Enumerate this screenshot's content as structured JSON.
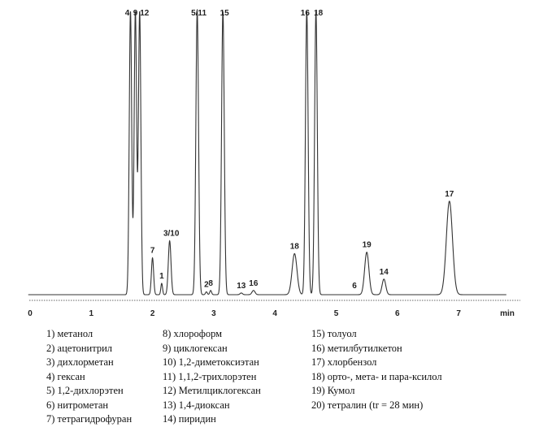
{
  "chart_data": {
    "type": "line",
    "title": "",
    "xlabel": "min",
    "ylabel": "",
    "xlim": [
      -0.05,
      7.9
    ],
    "x_ticks": [
      0,
      1,
      2,
      3,
      4,
      5,
      6,
      7
    ],
    "grid": false,
    "peaks": [
      {
        "t": 1.64,
        "h": 100,
        "w": 0.02,
        "label": "4"
      },
      {
        "t": 1.72,
        "h": 100,
        "w": 0.02,
        "label": "9"
      },
      {
        "t": 1.79,
        "h": 100,
        "w": 0.02,
        "label": "12"
      },
      {
        "t": 2.0,
        "h": 13,
        "w": 0.018,
        "label": "7"
      },
      {
        "t": 2.15,
        "h": 4,
        "w": 0.014,
        "label": "1"
      },
      {
        "t": 2.28,
        "h": 19,
        "w": 0.022,
        "label": "3/10"
      },
      {
        "t": 2.73,
        "h": 100,
        "w": 0.022,
        "label": "5/11"
      },
      {
        "t": 2.88,
        "h": 1,
        "w": 0.015,
        "label": "2"
      },
      {
        "t": 2.95,
        "h": 1.5,
        "w": 0.015,
        "label": "8"
      },
      {
        "t": 3.15,
        "h": 100,
        "w": 0.022,
        "label": "15"
      },
      {
        "t": 3.45,
        "h": 0.6,
        "w": 0.02,
        "label": "13"
      },
      {
        "t": 3.65,
        "h": 1.5,
        "w": 0.025,
        "label": "16"
      },
      {
        "t": 4.32,
        "h": 14.5,
        "w": 0.04,
        "label": "18"
      },
      {
        "t": 4.52,
        "h": 100,
        "w": 0.022,
        "label": "16"
      },
      {
        "t": 4.67,
        "h": 100,
        "w": 0.022,
        "label": "18"
      },
      {
        "t": 5.5,
        "h": 15,
        "w": 0.035,
        "label": "19"
      },
      {
        "t": 5.78,
        "h": 5.5,
        "w": 0.03,
        "label": "14"
      },
      {
        "t": 6.85,
        "h": 33,
        "w": 0.05,
        "label": "17"
      }
    ],
    "extra_labels": [
      {
        "t": 5.3,
        "label": "6"
      }
    ]
  },
  "legend": {
    "col1": [
      "1) метанол",
      "2) ацетонитрил",
      "3) дихлорметан",
      "4) гексан",
      "5) 1,2-дихлорэтен",
      "6) нитрометан",
      "7) тетрагидрофуран"
    ],
    "col2": [
      "8) хлороформ",
      "9) циклогексан",
      "10) 1,2-диметоксиэтан",
      "11) 1,1,2-трихлорэтен",
      "12) Метилциклогексан",
      "13) 1,4-диоксан",
      "14) пиридин"
    ],
    "col3": [
      "15) толуол",
      "16) метилбутилкетон",
      "17) хлорбензол",
      "18) орто-, мета- и пара-ксилол",
      "19) Кумол",
      "20) тетралин (tr = 28 мин)"
    ]
  }
}
